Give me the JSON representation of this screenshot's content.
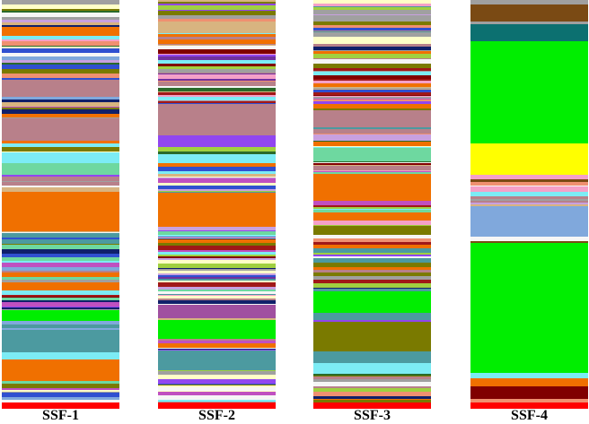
{
  "palette": {
    "orange": "#f07000",
    "green": "#00ee00",
    "yellow": "#ffff00",
    "red": "#ff0000",
    "mauve": "#b8808a",
    "teal": "#4c9aa0",
    "cyan": "#7cecf5",
    "olive": "#7a7a00",
    "purple": "#9146f0",
    "brown": "#7a4a14",
    "navy": "#10206a",
    "lightblue": "#80a8dc",
    "pink": "#f5a0c8",
    "cream": "#ffffc8",
    "tan": "#d8b480",
    "gray": "#a0a0a0",
    "maroon": "#800000",
    "darkgreen": "#2a6a2a",
    "magenta": "#c050c0",
    "lavender": "#c8a0e0",
    "seagreen": "#6ed8a0",
    "darkteal": "#0c7070",
    "plum": "#a050a0",
    "salmon": "#f09070",
    "blue": "#3050d0",
    "lime": "#a0d040",
    "darkred": "#a01818",
    "violet": "#7030a0",
    "white": "#f6f6f6"
  },
  "noise_palettes": {
    "SSF-1": [
      "mauve",
      "cyan",
      "navy",
      "pink",
      "cream",
      "tan",
      "gray",
      "maroon",
      "magenta",
      "lavender",
      "purple",
      "blue",
      "darkgreen",
      "seagreen",
      "orange",
      "salmon",
      "olive",
      "teal",
      "lightblue",
      "darkred",
      "white"
    ],
    "SSF-2": [
      "mauve",
      "cyan",
      "navy",
      "pink",
      "cream",
      "tan",
      "gray",
      "maroon",
      "magenta",
      "lavender",
      "purple",
      "blue",
      "darkgreen",
      "seagreen",
      "orange",
      "olive",
      "teal",
      "violet",
      "lime",
      "salmon",
      "darkred",
      "white"
    ],
    "SSF-3": [
      "mauve",
      "cyan",
      "navy",
      "pink",
      "cream",
      "tan",
      "gray",
      "maroon",
      "magenta",
      "lavender",
      "purple",
      "blue",
      "darkgreen",
      "seagreen",
      "orange",
      "olive",
      "teal",
      "salmon",
      "lime",
      "darkred",
      "white"
    ],
    "SSF-4": [
      "salmon",
      "pink",
      "cyan",
      "tan",
      "gray",
      "brown",
      "mauve",
      "lavender",
      "white"
    ]
  },
  "columns": [
    {
      "label": "SSF-1",
      "segments": [
        {
          "from": 0.0,
          "to": 0.066,
          "kind": "noise",
          "seed": 11
        },
        {
          "from": 0.066,
          "to": 0.088,
          "kind": "solid",
          "color": "orange"
        },
        {
          "from": 0.088,
          "to": 0.196,
          "kind": "noise",
          "seed": 12
        },
        {
          "from": 0.196,
          "to": 0.236,
          "kind": "solid",
          "color": "mauve"
        },
        {
          "from": 0.236,
          "to": 0.29,
          "kind": "noise",
          "seed": 13
        },
        {
          "from": 0.29,
          "to": 0.344,
          "kind": "solid",
          "color": "mauve"
        },
        {
          "from": 0.344,
          "to": 0.372,
          "kind": "noise",
          "seed": 14
        },
        {
          "from": 0.372,
          "to": 0.4,
          "kind": "solid",
          "color": "cyan"
        },
        {
          "from": 0.4,
          "to": 0.428,
          "kind": "solid",
          "color": "seagreen"
        },
        {
          "from": 0.428,
          "to": 0.47,
          "kind": "noise",
          "seed": 15
        },
        {
          "from": 0.47,
          "to": 0.565,
          "kind": "solid",
          "color": "orange"
        },
        {
          "from": 0.565,
          "to": 0.69,
          "kind": "noise",
          "seed": 16
        },
        {
          "from": 0.69,
          "to": 0.71,
          "kind": "solid",
          "color": "orange"
        },
        {
          "from": 0.71,
          "to": 0.758,
          "kind": "noise",
          "seed": 17
        },
        {
          "from": 0.758,
          "to": 0.786,
          "kind": "solid",
          "color": "green"
        },
        {
          "from": 0.786,
          "to": 0.808,
          "kind": "noise",
          "seed": 18
        },
        {
          "from": 0.808,
          "to": 0.862,
          "kind": "solid",
          "color": "teal"
        },
        {
          "from": 0.862,
          "to": 0.88,
          "kind": "solid",
          "color": "cyan"
        },
        {
          "from": 0.88,
          "to": 0.932,
          "kind": "solid",
          "color": "orange"
        },
        {
          "from": 0.932,
          "to": 0.985,
          "kind": "noise",
          "seed": 19
        },
        {
          "from": 0.985,
          "to": 1.0,
          "kind": "solid",
          "color": "red"
        }
      ]
    },
    {
      "label": "SSF-2",
      "segments": [
        {
          "from": 0.0,
          "to": 0.052,
          "kind": "noise",
          "seed": 21
        },
        {
          "from": 0.052,
          "to": 0.082,
          "kind": "solid",
          "color": "tan"
        },
        {
          "from": 0.082,
          "to": 0.255,
          "kind": "noise",
          "seed": 22
        },
        {
          "from": 0.255,
          "to": 0.332,
          "kind": "solid",
          "color": "mauve"
        },
        {
          "from": 0.332,
          "to": 0.36,
          "kind": "solid",
          "color": "purple"
        },
        {
          "from": 0.36,
          "to": 0.378,
          "kind": "noise",
          "seed": 23
        },
        {
          "from": 0.378,
          "to": 0.4,
          "kind": "solid",
          "color": "cyan"
        },
        {
          "from": 0.4,
          "to": 0.472,
          "kind": "noise",
          "seed": 24
        },
        {
          "from": 0.472,
          "to": 0.555,
          "kind": "solid",
          "color": "orange"
        },
        {
          "from": 0.555,
          "to": 0.745,
          "kind": "noise",
          "seed": 25
        },
        {
          "from": 0.745,
          "to": 0.778,
          "kind": "solid",
          "color": "plum"
        },
        {
          "from": 0.778,
          "to": 0.782,
          "kind": "noise",
          "seed": 26
        },
        {
          "from": 0.782,
          "to": 0.83,
          "kind": "solid",
          "color": "green"
        },
        {
          "from": 0.83,
          "to": 0.858,
          "kind": "noise",
          "seed": 27
        },
        {
          "from": 0.858,
          "to": 0.905,
          "kind": "solid",
          "color": "teal"
        },
        {
          "from": 0.905,
          "to": 0.985,
          "kind": "noise",
          "seed": 28
        },
        {
          "from": 0.985,
          "to": 1.0,
          "kind": "solid",
          "color": "red"
        }
      ]
    },
    {
      "label": "SSF-3",
      "segments": [
        {
          "from": 0.0,
          "to": 0.09,
          "kind": "noise",
          "seed": 31
        },
        {
          "from": 0.09,
          "to": 0.108,
          "kind": "solid",
          "color": "cream"
        },
        {
          "from": 0.108,
          "to": 0.27,
          "kind": "noise",
          "seed": 32
        },
        {
          "from": 0.27,
          "to": 0.312,
          "kind": "solid",
          "color": "mauve"
        },
        {
          "from": 0.312,
          "to": 0.362,
          "kind": "noise",
          "seed": 33
        },
        {
          "from": 0.362,
          "to": 0.395,
          "kind": "solid",
          "color": "seagreen"
        },
        {
          "from": 0.395,
          "to": 0.426,
          "kind": "noise",
          "seed": 34
        },
        {
          "from": 0.426,
          "to": 0.492,
          "kind": "solid",
          "color": "orange"
        },
        {
          "from": 0.492,
          "to": 0.52,
          "kind": "noise",
          "seed": 35
        },
        {
          "from": 0.52,
          "to": 0.54,
          "kind": "solid",
          "color": "orange"
        },
        {
          "from": 0.54,
          "to": 0.552,
          "kind": "noise",
          "seed": 36
        },
        {
          "from": 0.552,
          "to": 0.575,
          "kind": "solid",
          "color": "olive"
        },
        {
          "from": 0.575,
          "to": 0.712,
          "kind": "noise",
          "seed": 37
        },
        {
          "from": 0.712,
          "to": 0.765,
          "kind": "solid",
          "color": "green"
        },
        {
          "from": 0.765,
          "to": 0.788,
          "kind": "noise",
          "seed": 38
        },
        {
          "from": 0.788,
          "to": 0.86,
          "kind": "solid",
          "color": "olive"
        },
        {
          "from": 0.86,
          "to": 0.888,
          "kind": "solid",
          "color": "teal"
        },
        {
          "from": 0.888,
          "to": 0.915,
          "kind": "solid",
          "color": "cyan"
        },
        {
          "from": 0.915,
          "to": 0.985,
          "kind": "noise",
          "seed": 39
        },
        {
          "from": 0.985,
          "to": 1.0,
          "kind": "solid",
          "color": "red"
        }
      ]
    },
    {
      "label": "SSF-4",
      "segments": [
        {
          "from": 0.0,
          "to": 0.012,
          "kind": "solid",
          "color": "gray"
        },
        {
          "from": 0.012,
          "to": 0.052,
          "kind": "solid",
          "color": "brown"
        },
        {
          "from": 0.052,
          "to": 0.06,
          "kind": "solid",
          "color": "gray"
        },
        {
          "from": 0.06,
          "to": 0.1,
          "kind": "solid",
          "color": "darkteal"
        },
        {
          "from": 0.1,
          "to": 0.35,
          "kind": "solid",
          "color": "green"
        },
        {
          "from": 0.35,
          "to": 0.428,
          "kind": "solid",
          "color": "yellow"
        },
        {
          "from": 0.428,
          "to": 0.505,
          "kind": "noise",
          "seed": 41
        },
        {
          "from": 0.505,
          "to": 0.58,
          "kind": "solid",
          "color": "lightblue"
        },
        {
          "from": 0.58,
          "to": 0.595,
          "kind": "noise",
          "seed": 42
        },
        {
          "from": 0.595,
          "to": 0.912,
          "kind": "solid",
          "color": "green"
        },
        {
          "from": 0.912,
          "to": 0.925,
          "kind": "solid",
          "color": "cyan"
        },
        {
          "from": 0.925,
          "to": 0.945,
          "kind": "solid",
          "color": "orange"
        },
        {
          "from": 0.945,
          "to": 0.975,
          "kind": "solid",
          "color": "maroon"
        },
        {
          "from": 0.975,
          "to": 0.985,
          "kind": "solid",
          "color": "salmon"
        },
        {
          "from": 0.985,
          "to": 1.0,
          "kind": "solid",
          "color": "red"
        }
      ]
    }
  ]
}
